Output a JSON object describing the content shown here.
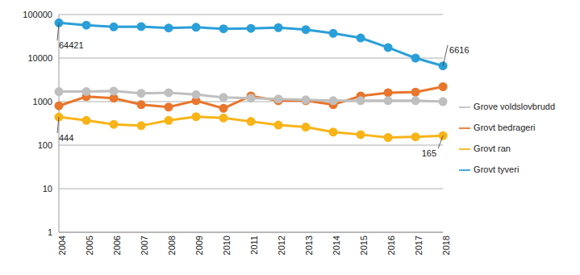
{
  "chart_data": {
    "type": "line",
    "log": "y",
    "grid": true,
    "legend": "right",
    "marker": "circle",
    "categories": [
      "2004",
      "2005",
      "2006",
      "2007",
      "2008",
      "2009",
      "2010",
      "2011",
      "2012",
      "2013",
      "2014",
      "2015",
      "2016",
      "2017",
      "2018"
    ],
    "ylim": [
      1,
      100000
    ],
    "yticks": [
      1,
      10,
      100,
      1000,
      10000,
      100000
    ],
    "series": [
      {
        "name": "Grovt tyveri",
        "color": "#2a9fd8",
        "values": [
          64421,
          57000,
          52000,
          53000,
          49000,
          51000,
          47000,
          48000,
          50000,
          45000,
          37000,
          29000,
          17500,
          10000,
          6616
        ]
      },
      {
        "name": "Grovt bedrageri",
        "color": "#e8762c",
        "values": [
          800,
          1300,
          1200,
          850,
          750,
          1050,
          700,
          1350,
          1050,
          1050,
          850,
          1350,
          1600,
          1650,
          2200
        ]
      },
      {
        "name": "Grove voldslovbrudd",
        "color": "#bfbfbf",
        "values": [
          1700,
          1700,
          1750,
          1550,
          1600,
          1450,
          1250,
          1200,
          1150,
          1100,
          1050,
          1050,
          1050,
          1050,
          1000
        ]
      },
      {
        "name": "Grovt ran",
        "color": "#f8b418",
        "values": [
          444,
          370,
          300,
          280,
          370,
          450,
          420,
          350,
          290,
          260,
          200,
          175,
          150,
          155,
          165
        ]
      }
    ],
    "annotations": [
      {
        "series": "Grovt tyveri",
        "x": "2004",
        "text": "64421"
      },
      {
        "series": "Grovt tyveri",
        "x": "2018",
        "text": "6616"
      },
      {
        "series": "Grovt ran",
        "x": "2004",
        "text": "444"
      },
      {
        "series": "Grovt ran",
        "x": "2018",
        "text": "165"
      }
    ]
  }
}
